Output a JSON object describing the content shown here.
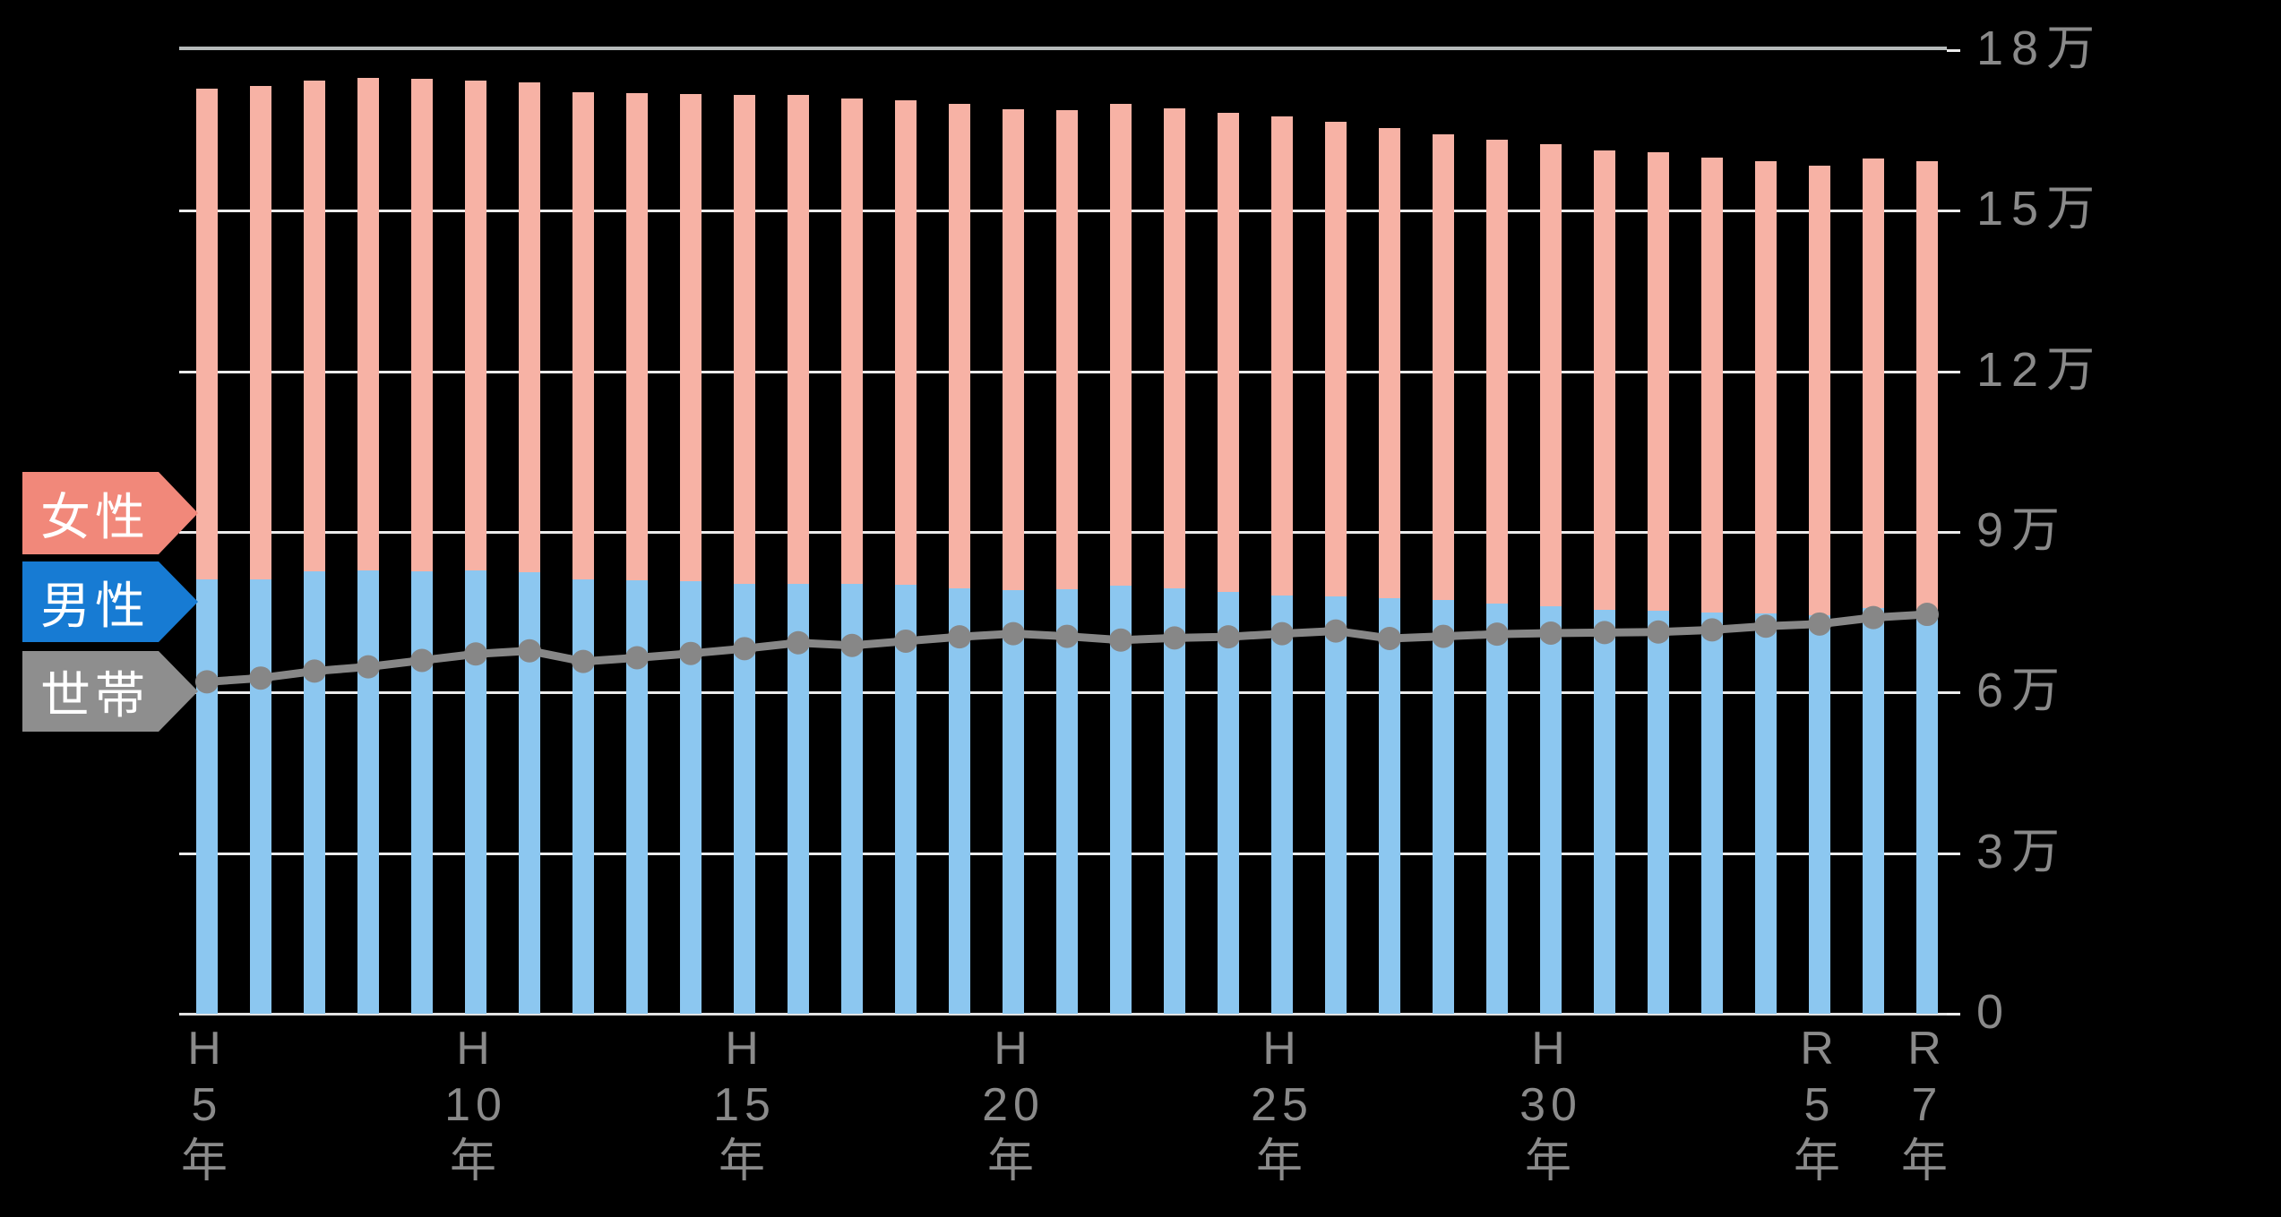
{
  "page": {
    "background": "#000000"
  },
  "legend": {
    "items": [
      {
        "id": "female",
        "label": "女性",
        "color": "#F1887A",
        "text_color": "#FFFFFF"
      },
      {
        "id": "male",
        "label": "男性",
        "color": "#177BD3",
        "text_color": "#FFFFFF"
      },
      {
        "id": "household",
        "label": "世帯",
        "color": "#8E8E8E",
        "text_color": "#FFFFFF"
      }
    ]
  },
  "y_axis": {
    "unit": "万",
    "tick_labels": [
      "18万",
      "15万",
      "12万",
      "9万",
      "6万",
      "3万",
      "0"
    ],
    "tick_values": [
      18,
      15,
      12,
      9,
      6,
      3,
      0
    ],
    "text_color": "#8A8A8A"
  },
  "x_axis": {
    "text_color": "#8A8A8A",
    "visible_ticks": [
      {
        "bar_index": 0,
        "lines": [
          "H",
          "5",
          "年"
        ]
      },
      {
        "bar_index": 5,
        "lines": [
          "H",
          "10",
          "年"
        ]
      },
      {
        "bar_index": 10,
        "lines": [
          "H",
          "15",
          "年"
        ]
      },
      {
        "bar_index": 15,
        "lines": [
          "H",
          "20",
          "年"
        ]
      },
      {
        "bar_index": 20,
        "lines": [
          "H",
          "25",
          "年"
        ]
      },
      {
        "bar_index": 25,
        "lines": [
          "H",
          "30",
          "年"
        ]
      },
      {
        "bar_index": 30,
        "lines": [
          "R",
          "5",
          "年"
        ]
      },
      {
        "bar_index": 32,
        "lines": [
          "R",
          "7",
          "年"
        ]
      }
    ]
  },
  "chart_data": {
    "type": "bar",
    "stacked": true,
    "overlay": "line",
    "unit": "万 (10,000s of people / households)",
    "ylim": [
      0,
      18
    ],
    "grid": true,
    "legend_position": "left",
    "categories": [
      "H5",
      "H6",
      "H7",
      "H8",
      "H9",
      "H10",
      "H11",
      "H12",
      "H13",
      "H14",
      "H15",
      "H16",
      "H17",
      "H18",
      "H19",
      "H20",
      "H21",
      "H22",
      "H23",
      "H24",
      "H25",
      "H26",
      "H27",
      "H28",
      "H29",
      "H30",
      "R1",
      "R2",
      "R3",
      "R4",
      "R5",
      "R6",
      "R7"
    ],
    "grid_values": [
      15,
      12,
      9,
      6,
      3
    ],
    "series": [
      {
        "name": "男性",
        "type": "bar",
        "color": "#8CC7F0",
        "values": [
          8.12,
          8.12,
          8.26,
          8.28,
          8.27,
          8.28,
          8.25,
          8.11,
          8.1,
          8.08,
          8.03,
          8.03,
          8.03,
          8.01,
          7.94,
          7.92,
          7.93,
          7.99,
          7.95,
          7.88,
          7.82,
          7.8,
          7.77,
          7.73,
          7.67,
          7.61,
          7.55,
          7.53,
          7.5,
          7.47,
          7.45,
          7.57,
          7.47
        ]
      },
      {
        "name": "女性",
        "type": "bar",
        "color": "#F7B2A5",
        "values": [
          9.16,
          9.21,
          9.18,
          9.2,
          9.19,
          9.15,
          9.15,
          9.11,
          9.09,
          9.1,
          9.14,
          9.13,
          9.07,
          9.06,
          9.06,
          8.98,
          8.95,
          9.0,
          8.97,
          8.95,
          8.94,
          8.86,
          8.77,
          8.7,
          8.65,
          8.63,
          8.57,
          8.57,
          8.49,
          8.45,
          8.4,
          8.4,
          8.46
        ]
      },
      {
        "name": "世帯",
        "type": "line",
        "color": "#878787",
        "values": [
          6.2,
          6.27,
          6.4,
          6.48,
          6.6,
          6.72,
          6.78,
          6.58,
          6.65,
          6.73,
          6.82,
          6.93,
          6.88,
          6.96,
          7.04,
          7.1,
          7.05,
          6.98,
          7.02,
          7.04,
          7.1,
          7.15,
          7.01,
          7.05,
          7.09,
          7.11,
          7.12,
          7.13,
          7.17,
          7.24,
          7.28,
          7.4,
          7.46
        ]
      }
    ]
  }
}
